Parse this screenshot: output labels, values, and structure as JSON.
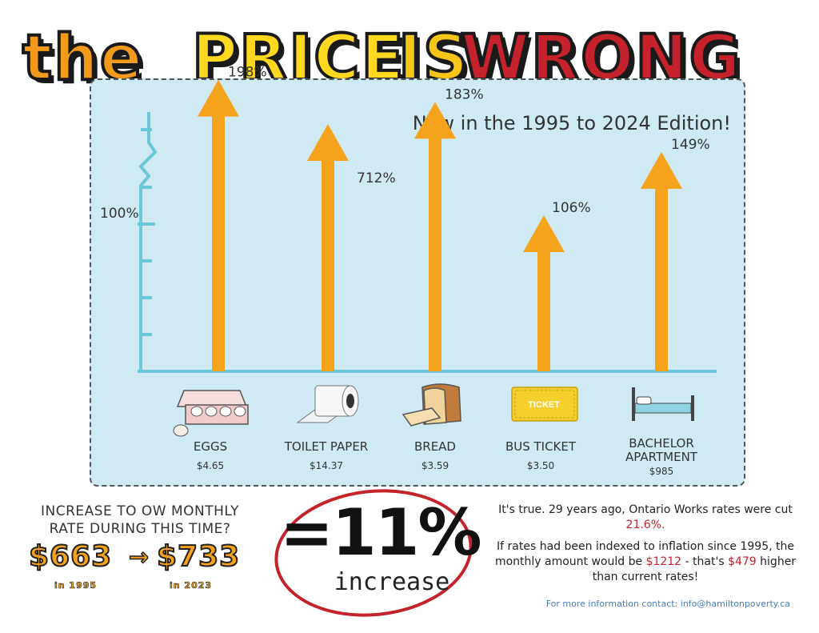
{
  "title": {
    "part1": "the",
    "part2": "PRICE",
    "part3": "IS",
    "part4": "WRONG"
  },
  "subtitle": "Now in the 1995 to 2024 Edition!",
  "chart_data": {
    "type": "bar",
    "title": "",
    "xlabel": "",
    "ylabel": "",
    "y_reference_label": "100%",
    "y_reference_value": 100,
    "categories": [
      "EGGS",
      "TOILET PAPER",
      "BREAD",
      "BUS TICKET",
      "BACHELOR APARTMENT"
    ],
    "prices": [
      "$4.65",
      "$14.37",
      "$3.59",
      "$3.50",
      "$985"
    ],
    "values": [
      198,
      712,
      183,
      106,
      149
    ],
    "value_labels": [
      "198%",
      "712%",
      "183%",
      "106%",
      "149%"
    ],
    "bar_color": "#f5a21d",
    "axis_color": "#6cc7d9",
    "axis_break": true
  },
  "icons": [
    "egg-carton-icon",
    "toilet-paper-icon",
    "bread-icon",
    "bus-ticket-icon",
    "bed-icon"
  ],
  "ticket_text": "TICKET",
  "bottom": {
    "question": "INCREASE TO OW MONTHLY RATE  DURING THIS TIME?",
    "rate_from": "$663",
    "rate_to": "$733",
    "arrow": "→",
    "year_from": "in 1995",
    "year_to": "in 2023",
    "big_value": "=11%",
    "big_word": "increase",
    "line1": "It's true. 29 years ago, Ontario Works rates were cut",
    "line1_highlight": "21.6%.",
    "line2_a": "If rates had been indexed to inflation since 1995, the monthly amount would be",
    "line2_h1": "$1212",
    "line2_b": " - that's ",
    "line2_h2": "$479",
    "line2_c": " higher than current rates!",
    "contact": "For more information contact:  info@hamiltonpoverty.ca"
  },
  "colors": {
    "accent_orange": "#f5a21d",
    "accent_red": "#c5222b",
    "panel_bg": "#cfeaf3"
  }
}
